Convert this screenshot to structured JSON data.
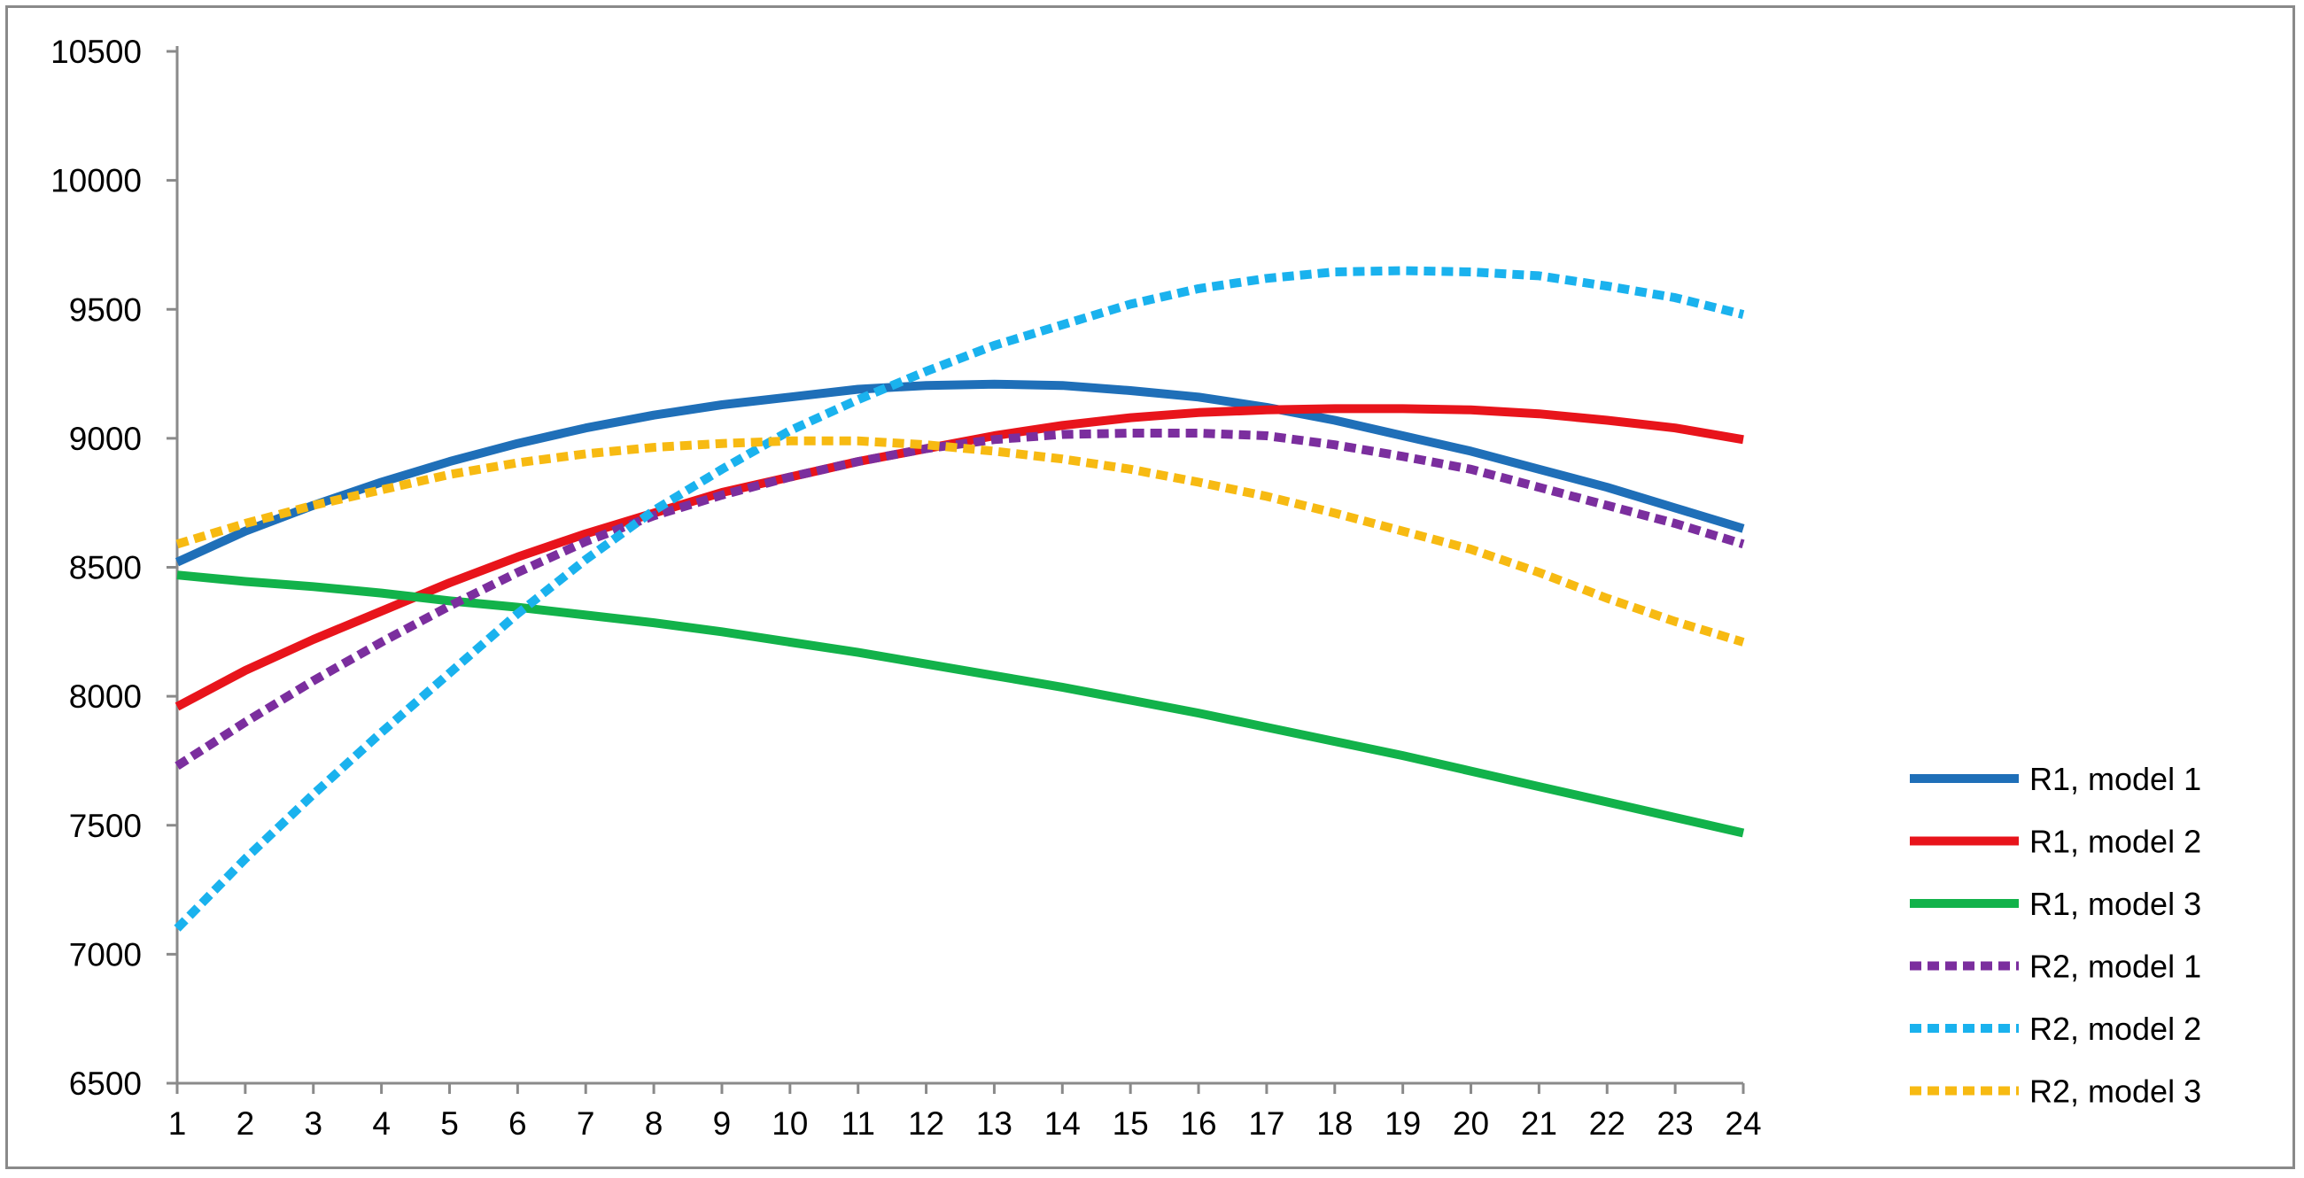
{
  "chart_data": {
    "type": "line",
    "title": "",
    "xlabel": "",
    "ylabel": "",
    "x": [
      1,
      2,
      3,
      4,
      5,
      6,
      7,
      8,
      9,
      10,
      11,
      12,
      13,
      14,
      15,
      16,
      17,
      18,
      19,
      20,
      21,
      22,
      23,
      24
    ],
    "xlim": [
      1,
      24
    ],
    "ylim": [
      6500,
      10500
    ],
    "yticks": [
      6500,
      7000,
      7500,
      8000,
      8500,
      9000,
      9500,
      10000,
      10500
    ],
    "grid": false,
    "legend_position": "right",
    "series": [
      {
        "name": "R1, model 1",
        "color": "#1F6FB8",
        "dash": "solid",
        "values": [
          8520,
          8640,
          8740,
          8830,
          8910,
          8980,
          9040,
          9090,
          9130,
          9160,
          9190,
          9205,
          9210,
          9205,
          9185,
          9160,
          9120,
          9070,
          9010,
          8950,
          8880,
          8810,
          8730,
          8650
        ]
      },
      {
        "name": "R1, model 2",
        "color": "#E8141B",
        "dash": "solid",
        "values": [
          7960,
          8100,
          8220,
          8330,
          8440,
          8540,
          8630,
          8710,
          8790,
          8850,
          8910,
          8960,
          9010,
          9050,
          9080,
          9100,
          9110,
          9115,
          9115,
          9110,
          9095,
          9070,
          9040,
          8995
        ]
      },
      {
        "name": "R1, model 3",
        "color": "#12B24A",
        "dash": "solid",
        "values": [
          8470,
          8445,
          8425,
          8400,
          8370,
          8345,
          8315,
          8285,
          8250,
          8210,
          8170,
          8125,
          8080,
          8035,
          7985,
          7935,
          7880,
          7825,
          7770,
          7710,
          7650,
          7590,
          7530,
          7470
        ]
      },
      {
        "name": "R2, model 1",
        "color": "#7B2E9E",
        "dash": "dashed",
        "values": [
          7730,
          7900,
          8060,
          8210,
          8350,
          8480,
          8600,
          8700,
          8780,
          8850,
          8910,
          8960,
          8995,
          9015,
          9020,
          9020,
          9010,
          8975,
          8930,
          8880,
          8810,
          8740,
          8670,
          8590
        ]
      },
      {
        "name": "R2, model 2",
        "color": "#1AB2EE",
        "dash": "dashed",
        "values": [
          7100,
          7370,
          7620,
          7860,
          8090,
          8320,
          8530,
          8720,
          8880,
          9030,
          9150,
          9260,
          9360,
          9440,
          9520,
          9580,
          9620,
          9645,
          9650,
          9645,
          9630,
          9590,
          9545,
          9480
        ]
      },
      {
        "name": "R2, model 3",
        "color": "#F7BA12",
        "dash": "dashed",
        "values": [
          8590,
          8670,
          8740,
          8800,
          8860,
          8905,
          8940,
          8965,
          8980,
          8990,
          8990,
          8975,
          8950,
          8920,
          8880,
          8830,
          8775,
          8710,
          8640,
          8570,
          8480,
          8380,
          8290,
          8210
        ]
      }
    ]
  }
}
